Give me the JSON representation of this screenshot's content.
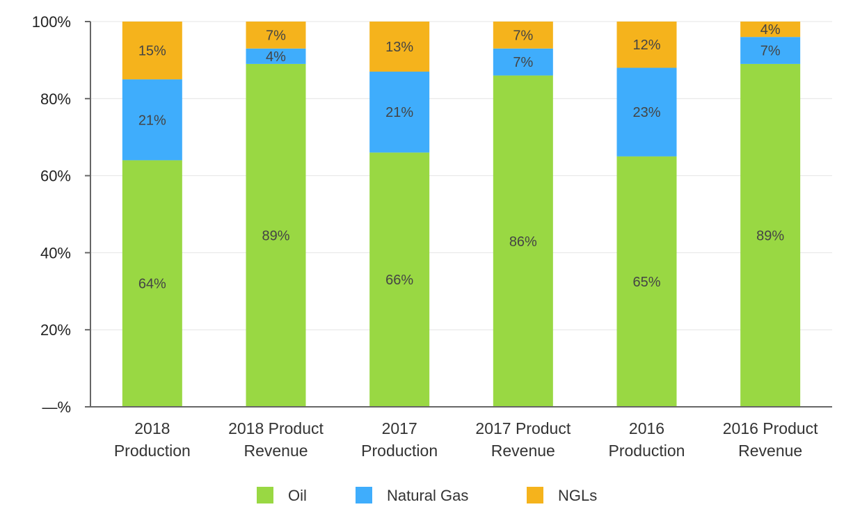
{
  "chart_data": {
    "type": "bar",
    "stacked": true,
    "categories": [
      [
        "2018",
        "Production"
      ],
      [
        "2018 Product",
        "Revenue"
      ],
      [
        "2017",
        "Production"
      ],
      [
        "2017 Product",
        "Revenue"
      ],
      [
        "2016",
        "Production"
      ],
      [
        "2016 Product",
        "Revenue"
      ]
    ],
    "series": [
      {
        "name": "Oil",
        "color": "#99d843",
        "values": [
          64,
          89,
          66,
          86,
          65,
          89
        ],
        "labels": [
          "64%",
          "89%",
          "66%",
          "86%",
          "65%",
          "89%"
        ]
      },
      {
        "name": "Natural Gas",
        "color": "#3fadfc",
        "values": [
          21,
          4,
          21,
          7,
          23,
          7
        ],
        "labels": [
          "21%",
          "4%",
          "21%",
          "7%",
          "23%",
          "7%"
        ]
      },
      {
        "name": "NGLs",
        "color": "#f5b31c",
        "values": [
          15,
          7,
          13,
          7,
          12,
          4
        ],
        "labels": [
          "15%",
          "7%",
          "13%",
          "7%",
          "12%",
          "4%"
        ]
      }
    ],
    "ylim": [
      0,
      100
    ],
    "yticks": [
      0,
      20,
      40,
      60,
      80,
      100
    ],
    "ytick_labels": [
      "—%",
      "20%",
      "40%",
      "60%",
      "80%",
      "100%"
    ],
    "grid": true,
    "legend": "bottom-center",
    "title": "",
    "xlabel": "",
    "ylabel": ""
  }
}
